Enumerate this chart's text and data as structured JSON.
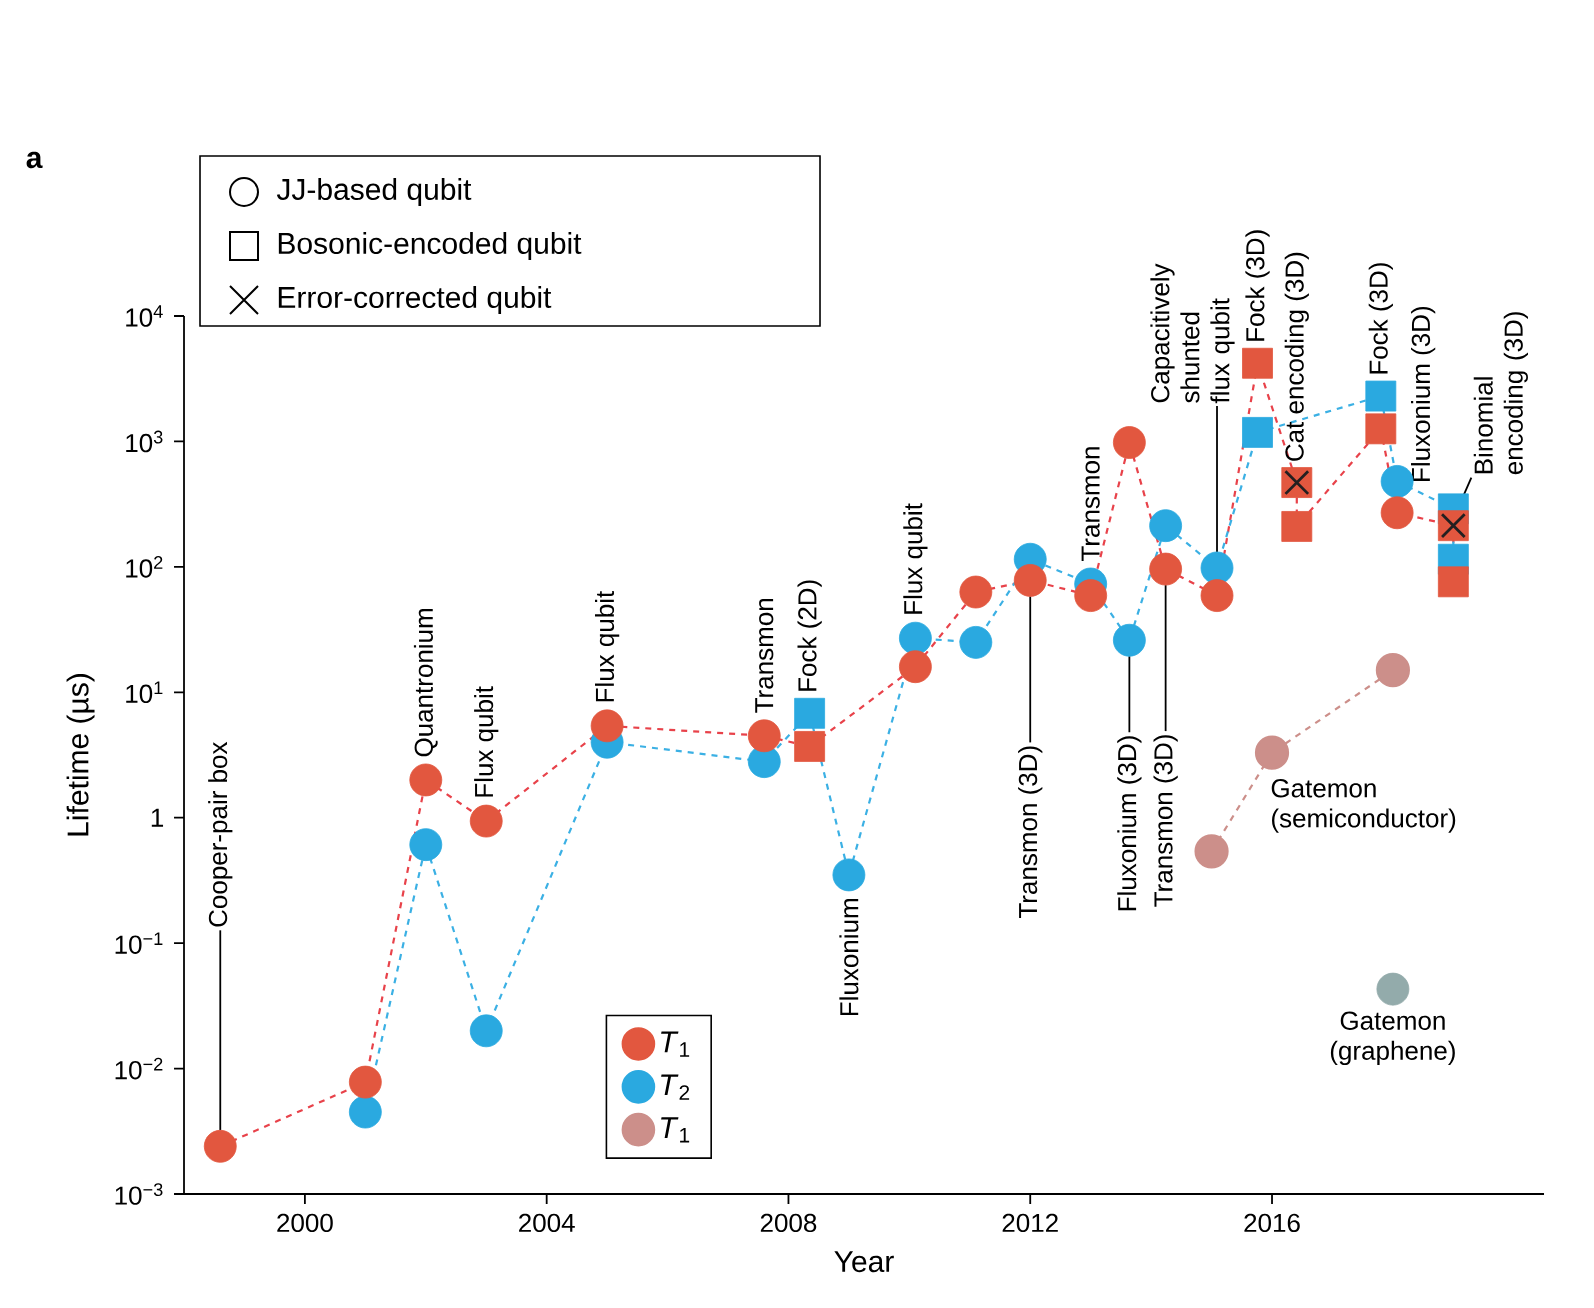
{
  "chart_data": {
    "type": "scatter",
    "title": "a",
    "xlabel": "Year",
    "ylabel": "Lifetime (µs)",
    "xlim": [
      1998,
      2020.5
    ],
    "xticks": [
      2000,
      2004,
      2008,
      2012,
      2016
    ],
    "ylim": [
      0.001,
      10000
    ],
    "yticks": [
      {
        "value": 0.001,
        "label": "10$^{−3}$"
      },
      {
        "value": 0.01,
        "label": "10$^{−2}$"
      },
      {
        "value": 0.1,
        "label": "10$^{−1}$"
      },
      1,
      {
        "value": 10,
        "label": "10$^{1}$"
      },
      {
        "value": 100,
        "label": "10$^{2}$"
      },
      {
        "value": 1000,
        "label": "10$^{3}$"
      },
      {
        "value": 10000,
        "label": "10$^{4}$"
      }
    ],
    "log": "y",
    "grid": false,
    "legend": "bottom left",
    "series": [
      {
        "type": "line",
        "color": "#e8424a",
        "line_style": "dashed",
        "marker": "none",
        "x": [
          1998.6,
          2001,
          2002,
          2003,
          2005,
          2007.6,
          2008.35,
          2010.1,
          2011.1,
          2012,
          2013,
          2013.64,
          2014.24,
          2015.09,
          2015.76,
          2016.41,
          2016.41,
          2017.8,
          2018.07,
          2019,
          2019
        ],
        "values": [
          0.0024,
          0.0078,
          2.0,
          0.94,
          5.4,
          4.5,
          3.7,
          16,
          63,
          78,
          59,
          980,
          96,
          59,
          4200,
          470,
          210,
          1260,
          270,
          213,
          76
        ]
      },
      {
        "type": "line",
        "color": "#3bb0e4",
        "line_style": "dashed",
        "marker": "none",
        "x": [
          2001,
          2002,
          2003,
          2005,
          2007.6,
          2008.35,
          2009,
          2010.1,
          2011.1,
          2012,
          2013,
          2013.64,
          2014.24,
          2015.09,
          2015.76,
          2017.8,
          2018.07,
          2019,
          2019
        ],
        "values": [
          0.0045,
          0.61,
          0.02,
          4.0,
          2.8,
          6.8,
          0.35,
          27,
          25,
          115,
          73,
          26,
          213,
          98,
          1180,
          2300,
          480,
          290,
          115
        ]
      },
      {
        "name": "*T*$_{1}$",
        "color": "#e2573f",
        "marker": "circle",
        "x": [
          1998.6,
          2001,
          2002,
          2003,
          2005,
          2007.6,
          2010.1,
          2011.1,
          2012,
          2013,
          2013.64,
          2014.24,
          2015.09,
          2018.07
        ],
        "values": [
          0.0024,
          0.0078,
          2.0,
          0.94,
          5.4,
          4.5,
          16,
          63,
          78,
          59,
          980,
          96,
          59,
          270
        ]
      },
      {
        "name": "*T*$_{2}$",
        "color": "#2aa9e0",
        "marker": "circle",
        "x": [
          2001,
          2002,
          2003,
          2005,
          2007.6,
          2009,
          2010.1,
          2011.1,
          2012,
          2013,
          2013.64,
          2014.24,
          2015.09,
          2018.07
        ],
        "values": [
          0.0045,
          0.61,
          0.02,
          4.0,
          2.8,
          0.35,
          27,
          25,
          115,
          73,
          26,
          213,
          98,
          480
        ]
      },
      {
        "color": "#2aa9e0",
        "marker": "square",
        "x": [
          2008.35,
          2015.76,
          2017.8,
          2019,
          2019
        ],
        "values": [
          6.8,
          1180,
          2300,
          290,
          115
        ]
      },
      {
        "color": "#e2573f",
        "marker": "square",
        "x": [
          2008.35,
          2015.76,
          2016.41,
          2016.41,
          2017.8,
          2019,
          2019
        ],
        "values": [
          3.7,
          4200,
          470,
          210,
          1260,
          213,
          76
        ]
      },
      {
        "color": "#231f20",
        "marker": "cross",
        "x": [
          2016.41,
          2019
        ],
        "values": [
          470,
          213
        ]
      },
      {
        "name": "*T*$_{1}$",
        "type": "line",
        "color": "#cc8f8a",
        "line_style": "dashed",
        "marker": "circle",
        "x": [
          2015,
          2016,
          2018
        ],
        "values": [
          0.54,
          3.3,
          15
        ]
      },
      {
        "color": "#93abab",
        "marker": "circle",
        "x": [
          2018
        ],
        "values": [
          0.043
        ]
      }
    ],
    "annotations": [
      {
        "text": "Cooper-pair box",
        "x": 1998.6,
        "y": 0.0024
      },
      {
        "text": "Quantronium",
        "x": 2002,
        "y": 2.0
      },
      {
        "text": "Flux qubit",
        "x": 2003,
        "y": 0.94
      },
      {
        "text": "Flux qubit",
        "x": 2005,
        "y": 5.4
      },
      {
        "text": "Transmon",
        "x": 2007.6,
        "y": 4.5
      },
      {
        "text": "Fock (2D)",
        "x": 2008.35,
        "y": 6.8
      },
      {
        "text": "Fluxonium",
        "x": 2009,
        "y": 0.35
      },
      {
        "text": "Flux qubit",
        "x": 2010.1,
        "y": 27
      },
      {
        "text": "Transmon (3D)",
        "x": 2012,
        "y": 78
      },
      {
        "text": "Transmon",
        "x": 2013,
        "y": 73
      },
      {
        "text": "Capacitively shunted flux qubit",
        "x": 2015.09,
        "y": 98
      },
      {
        "text": "Fluxonium (3D)",
        "x": 2013.64,
        "y": 26
      },
      {
        "text": "Transmon (3D)",
        "x": 2014.24,
        "y": 96
      },
      {
        "text": "Fock (3D)",
        "x": 2015.76,
        "y": 4200
      },
      {
        "text": "Cat encoding (3D)",
        "x": 2016.41,
        "y": 470
      },
      {
        "text": "Fock (3D)",
        "x": 2017.8,
        "y": 2300
      },
      {
        "text": "Fluxonium (3D)",
        "x": 2018.07,
        "y": 480
      },
      {
        "text": "Binomial encoding (3D)",
        "x": 2019,
        "y": 213
      },
      {
        "text": "Gatemon (semiconductor)",
        "x": 2016,
        "y": 3.3
      },
      {
        "text": "Gatemon (graphene)",
        "x": 2018,
        "y": 0.043
      },
      "JJ-based qubit",
      "Bosonic-encoded qubit",
      "Error-corrected qubit"
    ]
  }
}
